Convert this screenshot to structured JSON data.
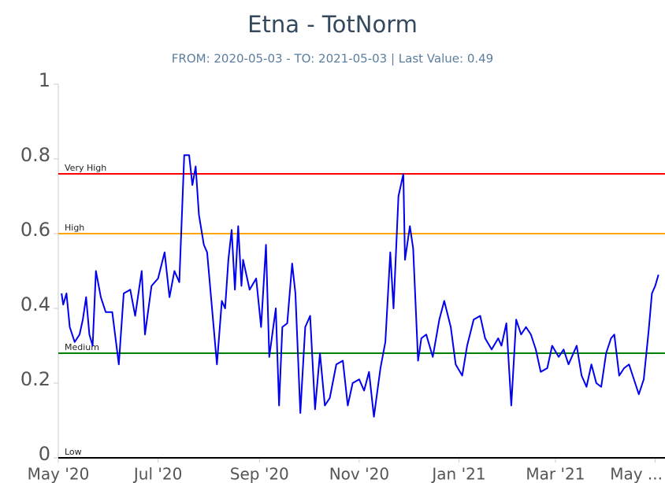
{
  "chart_data": {
    "type": "line",
    "title": "Etna - TotNorm",
    "subtitle": "FROM: 2020-05-03 - TO: 2021-05-03 | Last Value: 0.49",
    "x": [
      "2020-05-03",
      "2020-05-04",
      "2020-05-06",
      "2020-05-08",
      "2020-05-11",
      "2020-05-14",
      "2020-05-16",
      "2020-05-18",
      "2020-05-20",
      "2020-05-22",
      "2020-05-24",
      "2020-05-27",
      "2020-05-30",
      "2020-06-03",
      "2020-06-07",
      "2020-06-10",
      "2020-06-14",
      "2020-06-17",
      "2020-06-21",
      "2020-06-23",
      "2020-06-27",
      "2020-07-01",
      "2020-07-05",
      "2020-07-08",
      "2020-07-11",
      "2020-07-14",
      "2020-07-17",
      "2020-07-20",
      "2020-07-22",
      "2020-07-24",
      "2020-07-26",
      "2020-07-29",
      "2020-07-31",
      "2020-08-02",
      "2020-08-06",
      "2020-08-09",
      "2020-08-11",
      "2020-08-13",
      "2020-08-15",
      "2020-08-17",
      "2020-08-19",
      "2020-08-21",
      "2020-08-22",
      "2020-08-26",
      "2020-08-30",
      "2020-09-02",
      "2020-09-05",
      "2020-09-07",
      "2020-09-11",
      "2020-09-13",
      "2020-09-15",
      "2020-09-18",
      "2020-09-21",
      "2020-09-23",
      "2020-09-26",
      "2020-09-29",
      "2020-10-02",
      "2020-10-05",
      "2020-10-08",
      "2020-10-11",
      "2020-10-14",
      "2020-10-18",
      "2020-10-22",
      "2020-10-25",
      "2020-10-28",
      "2020-11-01",
      "2020-11-04",
      "2020-11-07",
      "2020-11-10",
      "2020-11-14",
      "2020-11-17",
      "2020-11-20",
      "2020-11-22",
      "2020-11-25",
      "2020-11-28",
      "2020-11-29",
      "2020-12-02",
      "2020-12-04",
      "2020-12-07",
      "2020-12-09",
      "2020-12-12",
      "2020-12-16",
      "2020-12-20",
      "2020-12-23",
      "2020-12-27",
      "2020-12-30",
      "2021-01-03",
      "2021-01-06",
      "2021-01-10",
      "2021-01-14",
      "2021-01-17",
      "2021-01-21",
      "2021-01-25",
      "2021-01-27",
      "2021-01-30",
      "2021-02-02",
      "2021-02-05",
      "2021-02-08",
      "2021-02-11",
      "2021-02-14",
      "2021-02-17",
      "2021-02-20",
      "2021-02-24",
      "2021-02-27",
      "2021-03-03",
      "2021-03-06",
      "2021-03-09",
      "2021-03-11",
      "2021-03-14",
      "2021-03-17",
      "2021-03-20",
      "2021-03-23",
      "2021-03-26",
      "2021-03-29",
      "2021-04-01",
      "2021-04-04",
      "2021-04-06",
      "2021-04-09",
      "2021-04-12",
      "2021-04-15",
      "2021-04-18",
      "2021-04-21",
      "2021-04-24",
      "2021-04-27",
      "2021-04-29",
      "2021-05-01",
      "2021-05-03"
    ],
    "series": [
      {
        "color": "#0000ee",
        "values": [
          0.44,
          0.41,
          0.44,
          0.35,
          0.31,
          0.33,
          0.37,
          0.43,
          0.33,
          0.3,
          0.5,
          0.43,
          0.39,
          0.39,
          0.25,
          0.44,
          0.45,
          0.38,
          0.5,
          0.33,
          0.46,
          0.48,
          0.55,
          0.43,
          0.5,
          0.47,
          0.81,
          0.81,
          0.73,
          0.78,
          0.65,
          0.57,
          0.55,
          0.45,
          0.25,
          0.42,
          0.4,
          0.53,
          0.61,
          0.45,
          0.62,
          0.46,
          0.53,
          0.45,
          0.48,
          0.35,
          0.57,
          0.27,
          0.4,
          0.14,
          0.35,
          0.36,
          0.52,
          0.44,
          0.12,
          0.35,
          0.38,
          0.13,
          0.28,
          0.14,
          0.16,
          0.25,
          0.26,
          0.14,
          0.2,
          0.21,
          0.18,
          0.23,
          0.11,
          0.24,
          0.31,
          0.55,
          0.4,
          0.7,
          0.76,
          0.53,
          0.62,
          0.56,
          0.26,
          0.32,
          0.33,
          0.27,
          0.37,
          0.42,
          0.35,
          0.25,
          0.22,
          0.3,
          0.37,
          0.38,
          0.32,
          0.29,
          0.32,
          0.3,
          0.36,
          0.14,
          0.37,
          0.33,
          0.35,
          0.33,
          0.29,
          0.23,
          0.24,
          0.3,
          0.27,
          0.29,
          0.25,
          0.27,
          0.3,
          0.22,
          0.19,
          0.25,
          0.2,
          0.19,
          0.28,
          0.32,
          0.33,
          0.22,
          0.24,
          0.25,
          0.21,
          0.17,
          0.21,
          0.34,
          0.44,
          0.46,
          0.49
        ]
      }
    ],
    "xlim": [
      "2020-05-01",
      "2021-05-07"
    ],
    "xticks": [
      {
        "value": "2020-05-01",
        "label": "May '20"
      },
      {
        "value": "2020-07-01",
        "label": "Jul '20"
      },
      {
        "value": "2020-09-01",
        "label": "Sep '20"
      },
      {
        "value": "2020-11-01",
        "label": "Nov '20"
      },
      {
        "value": "2021-01-01",
        "label": "Jan '21"
      },
      {
        "value": "2021-03-01",
        "label": "Mar '21"
      },
      {
        "value": "2021-05-01",
        "label": "May ..."
      }
    ],
    "ylim": [
      0,
      1
    ],
    "yticks": [
      0,
      0.2,
      0.4,
      0.6,
      0.8,
      1
    ],
    "thresholds": [
      {
        "label": "Very High",
        "value": 0.76,
        "color": "#ff0000"
      },
      {
        "label": "High",
        "value": 0.6,
        "color": "#ffa500"
      },
      {
        "label": "Medium",
        "value": 0.28,
        "color": "#008000"
      },
      {
        "label": "Low",
        "value": 0,
        "color": "#000000"
      }
    ]
  }
}
